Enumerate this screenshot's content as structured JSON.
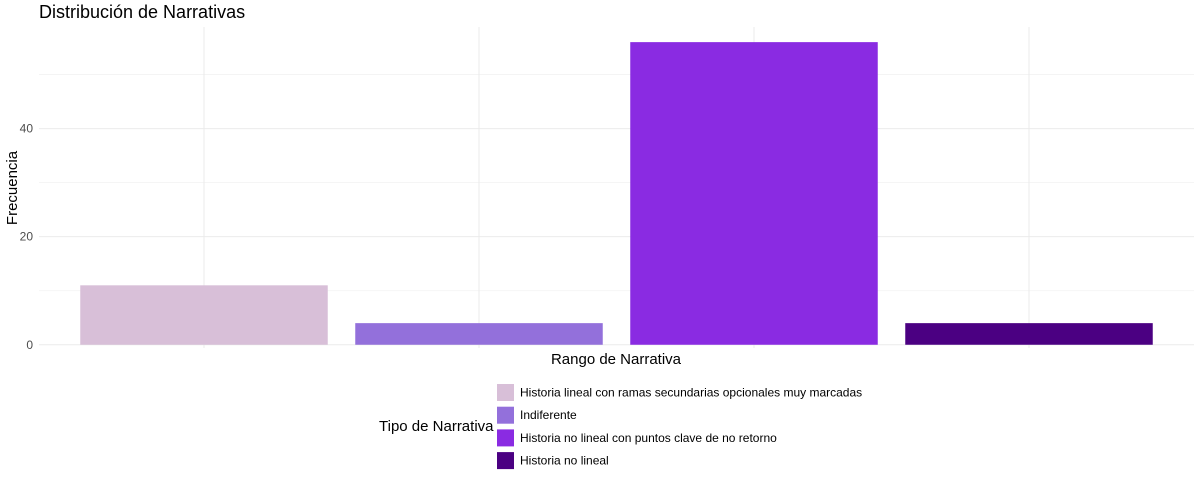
{
  "chart_data": {
    "type": "bar",
    "title": "Distribución de Narrativas",
    "xlabel": "Rango de Narrativa",
    "ylabel": "Frecuencia",
    "ylim": [
      -0.6,
      58.8
    ],
    "yticks": [
      0,
      20,
      40
    ],
    "grid": true,
    "categories": [
      "Historia lineal con ramas secundarias opcionales muy marcadas",
      "Indiferente",
      "Historia no lineal con puntos clave de no retorno",
      "Historia no lineal"
    ],
    "values": [
      11,
      4,
      56,
      4
    ],
    "colors": [
      "#D8BFD8",
      "#9370DB",
      "#8A2BE2",
      "#4B0082"
    ],
    "legend": {
      "title": "Tipo de Narrativa",
      "position": "bottom",
      "entries": [
        "Historia lineal con ramas secundarias opcionales muy marcadas",
        "Indiferente",
        "Historia no lineal con puntos clave de no retorno",
        "Historia no lineal"
      ]
    }
  }
}
